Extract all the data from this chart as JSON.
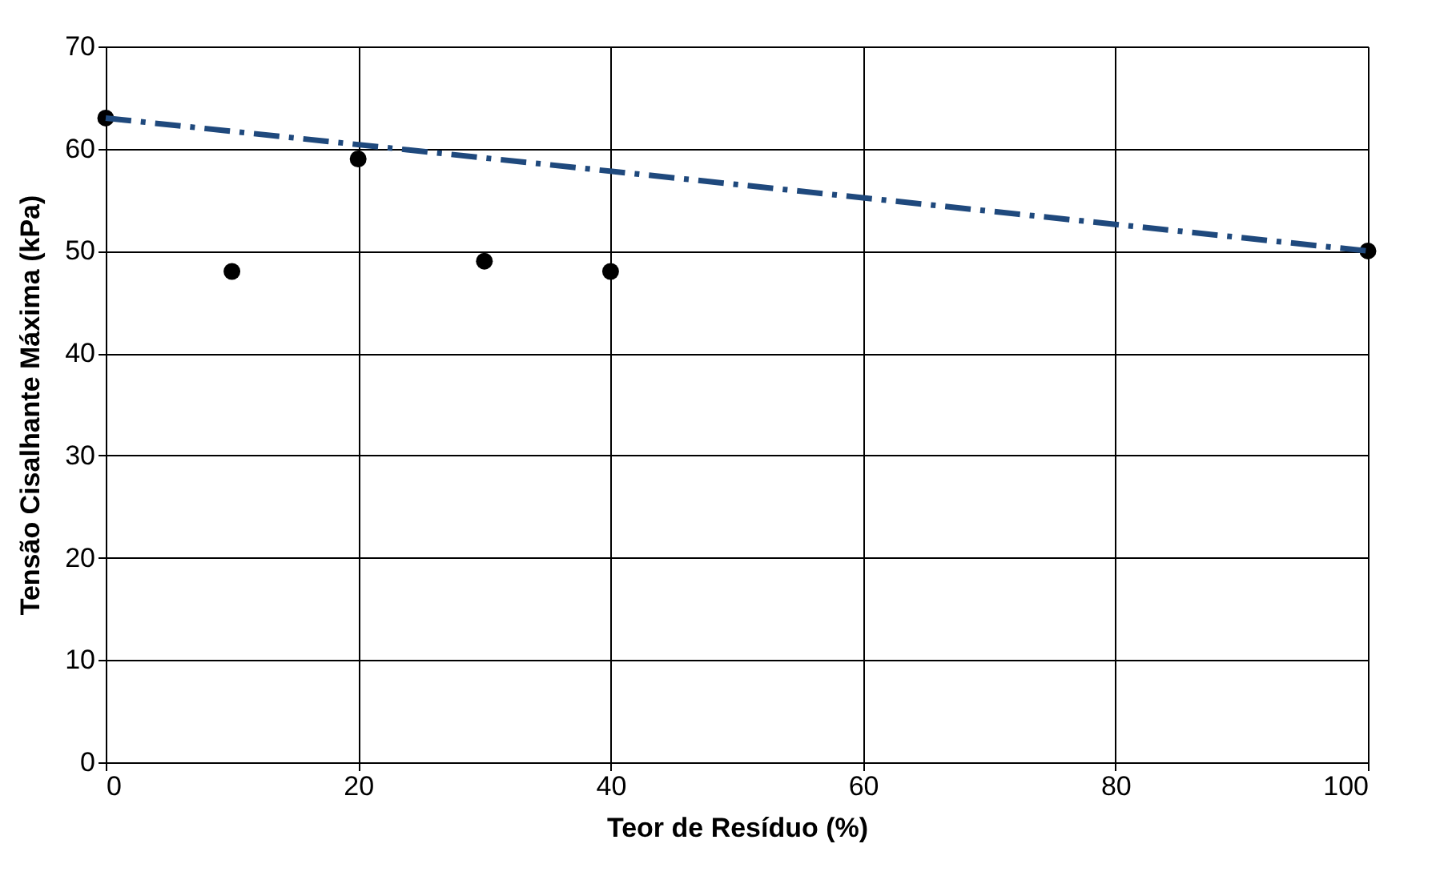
{
  "chart_data": {
    "type": "scatter",
    "xlabel": "Teor de Resíduo (%)",
    "ylabel": "Tensão Cisalhante Máxima (kPa)",
    "xlim": [
      0,
      100
    ],
    "xticks": [
      0,
      20,
      40,
      60,
      80,
      100
    ],
    "ylim": [
      0,
      70
    ],
    "yticks": [
      0,
      10,
      20,
      30,
      40,
      50,
      60,
      70
    ],
    "grid": true,
    "series": [
      {
        "color": "#000000",
        "marker": "circle",
        "x": [
          0,
          10,
          20,
          30,
          40,
          100
        ],
        "values": [
          63,
          48,
          59,
          49,
          48,
          50
        ]
      },
      {
        "type": "line",
        "color": "#1f497d",
        "line_style": "dashed",
        "marker": "none",
        "x": [
          0,
          100
        ],
        "values": [
          63,
          50
        ]
      }
    ]
  }
}
